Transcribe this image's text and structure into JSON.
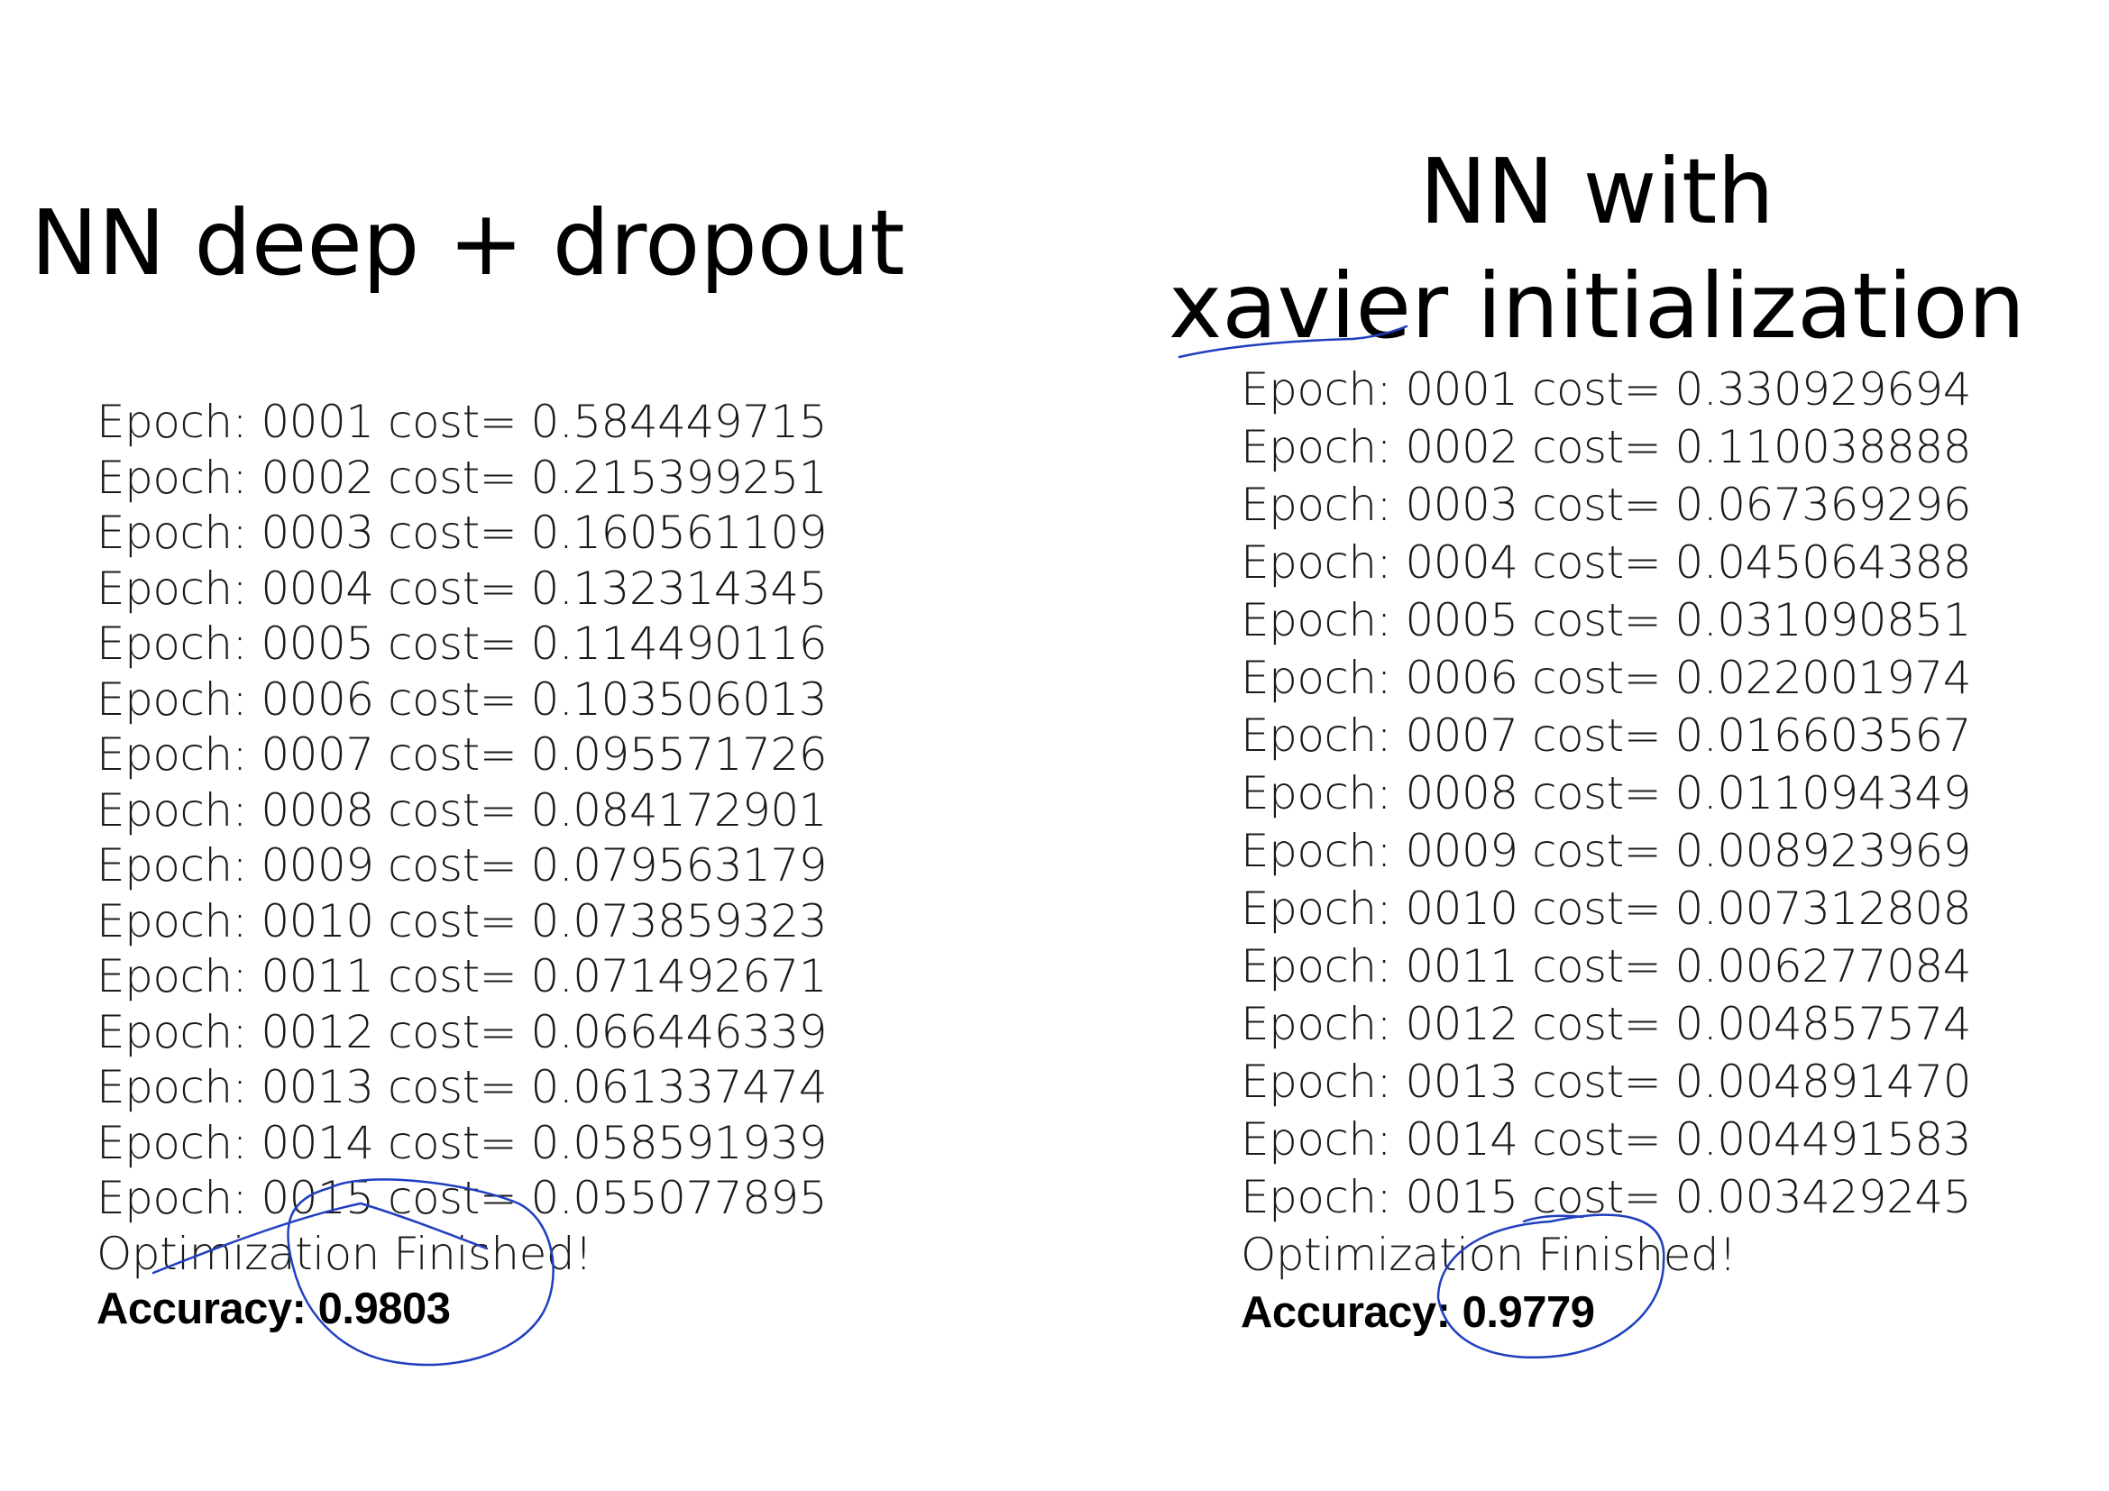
{
  "left_panel": {
    "title": "NN deep + dropout",
    "epochs": [
      "Epoch: 0001 cost= 0.584449715",
      "Epoch: 0002 cost= 0.215399251",
      "Epoch: 0003 cost= 0.160561109",
      "Epoch: 0004 cost= 0.132314345",
      "Epoch: 0005 cost= 0.114490116",
      "Epoch: 0006 cost= 0.103506013",
      "Epoch: 0007 cost= 0.095571726",
      "Epoch: 0008 cost= 0.084172901",
      "Epoch: 0009 cost= 0.079563179",
      "Epoch: 0010 cost= 0.073859323",
      "Epoch: 0011 cost= 0.071492671",
      "Epoch: 0012 cost= 0.066446339",
      "Epoch: 0013 cost= 0.061337474",
      "Epoch: 0014 cost= 0.058591939",
      "Epoch: 0015 cost= 0.055077895"
    ],
    "finished": "Optimization Finished!",
    "accuracy": "Accuracy: 0.9803"
  },
  "right_panel": {
    "title_line1": "NN with",
    "title_line2": "xavier initialization",
    "epochs": [
      "Epoch: 0001 cost= 0.330929694",
      "Epoch: 0002 cost= 0.110038888",
      "Epoch: 0003 cost= 0.067369296",
      "Epoch: 0004 cost= 0.045064388",
      "Epoch: 0005 cost= 0.031090851",
      "Epoch: 0006 cost= 0.022001974",
      "Epoch: 0007 cost= 0.016603567",
      "Epoch: 0008 cost= 0.011094349",
      "Epoch: 0009 cost= 0.008923969",
      "Epoch: 0010 cost= 0.007312808",
      "Epoch: 0011 cost= 0.006277084",
      "Epoch: 0012 cost= 0.004857574",
      "Epoch: 0013 cost= 0.004891470",
      "Epoch: 0014 cost= 0.004491583",
      "Epoch: 0015 cost= 0.003429245"
    ],
    "finished": "Optimization Finished!",
    "accuracy": "Accuracy: 0.9779"
  },
  "annotation_color": "#1f3fbf"
}
